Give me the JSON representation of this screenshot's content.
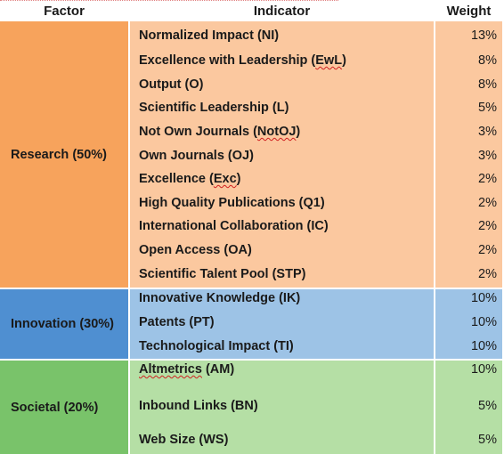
{
  "headers": {
    "factor": "Factor",
    "indicator": "Indicator",
    "weight": "Weight"
  },
  "colors": {
    "research_factor": "#f7a35c",
    "research_cell": "#fbc89f",
    "innovation_factor": "#4f8fd1",
    "innovation_cell": "#9dc3e6",
    "societal_factor": "#79c36a",
    "societal_cell": "#b5dfa5"
  },
  "groups": [
    {
      "factor": "Research (50%)",
      "rows": [
        {
          "indicator": "Normalized Impact (NI)",
          "weight": "13%"
        },
        {
          "indicator": "Excellence with Leadership (EwL)",
          "weight": "8%"
        },
        {
          "indicator": "Output (O)",
          "weight": "8%"
        },
        {
          "indicator": "Scientific Leadership (L)",
          "weight": "5%"
        },
        {
          "indicator": "Not Own Journals (NotOJ)",
          "weight": "3%"
        },
        {
          "indicator": "Own Journals (OJ)",
          "weight": "3%"
        },
        {
          "indicator": "Excellence (Exc)",
          "weight": "2%"
        },
        {
          "indicator": "High Quality Publications (Q1)",
          "weight": "2%"
        },
        {
          "indicator": "International Collaboration (IC)",
          "weight": "2%"
        },
        {
          "indicator": "Open Access (OA)",
          "weight": "2%"
        },
        {
          "indicator": "Scientific Talent Pool (STP)",
          "weight": "2%"
        }
      ]
    },
    {
      "factor": "Innovation (30%)",
      "rows": [
        {
          "indicator": "Innovative Knowledge (IK)",
          "weight": "10%"
        },
        {
          "indicator": "Patents (PT)",
          "weight": "10%"
        },
        {
          "indicator": "Technological Impact (TI)",
          "weight": "10%"
        }
      ]
    },
    {
      "factor": "Societal (20%)",
      "rows": [
        {
          "indicator": "Altmetrics (AM)",
          "weight": "10%"
        },
        {
          "indicator": "Inbound Links (BN)",
          "weight": "5%"
        },
        {
          "indicator": "Web Size (WS)",
          "weight": "5%"
        }
      ]
    }
  ]
}
